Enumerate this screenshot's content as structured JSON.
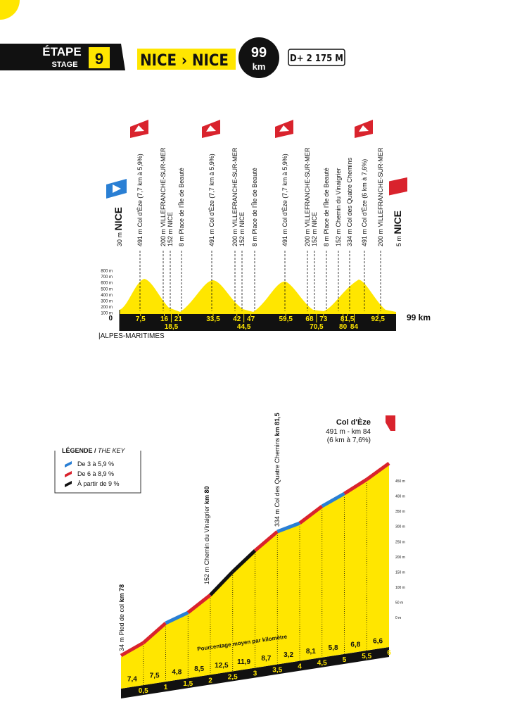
{
  "header": {
    "etape": "ÉTAPE",
    "stage": "STAGE",
    "number": "9",
    "route": "NICE › NICE",
    "distance": "99",
    "distance_unit": "km",
    "climb": "D+ 2 175 M"
  },
  "profile": {
    "start": {
      "alt": "30 m",
      "name": "NICE"
    },
    "finish": {
      "alt": "5 m",
      "name": "NICE"
    },
    "waypoints": [
      {
        "alt": "491 m",
        "name": "Col d'Èze (7,7 km à 5,9%)"
      },
      {
        "alt": "200 m",
        "name": "VILLEFRANCHE-SUR-MER"
      },
      {
        "alt": "152 m",
        "name": "NICE"
      },
      {
        "alt": "8 m",
        "name": "Place de l'Île de Beauté"
      },
      {
        "alt": "491 m",
        "name": "Col d'Èze (7,7 km à 5,9%)"
      },
      {
        "alt": "200 m",
        "name": "VILLEFRANCHE-SUR-MER"
      },
      {
        "alt": "152 m",
        "name": "NICE"
      },
      {
        "alt": "8 m",
        "name": "Place de l'Île de Beauté"
      },
      {
        "alt": "491 m",
        "name": "Col d'Èze (7,7 km à 5,9%)"
      },
      {
        "alt": "200 m",
        "name": "VILLEFRANCHE-SUR-MER"
      },
      {
        "alt": "152 m",
        "name": "NICE"
      },
      {
        "alt": "8 m",
        "name": "Place de l'Île de Beauté"
      },
      {
        "alt": "152 m",
        "name": "Chemin du Vinaigrier"
      },
      {
        "alt": "334 m",
        "name": "Col des Quatre Chemins"
      },
      {
        "alt": "491 m",
        "name": "Col d'Èze (6 km à 7,6%)"
      },
      {
        "alt": "200 m",
        "name": "VILLEFRANCHE-SUR-MER"
      }
    ],
    "yticks": [
      {
        "value": 800,
        "label": "800 m"
      },
      {
        "value": 700,
        "label": "700 m"
      },
      {
        "value": 600,
        "label": "600 m"
      },
      {
        "value": 500,
        "label": "500 m"
      },
      {
        "value": 400,
        "label": "400 m"
      },
      {
        "value": 300,
        "label": "300 m"
      },
      {
        "value": 200,
        "label": "200 m"
      },
      {
        "value": 100,
        "label": "100 m"
      },
      0
    ],
    "km_markers": [
      {
        "value": 7.5,
        "label": "7,5"
      },
      16,
      21,
      {
        "value": 33.5,
        "label": "33,5"
      },
      42,
      47,
      {
        "value": 59.5,
        "label": "59,5"
      },
      68,
      73,
      {
        "value": 81.5,
        "label": "81,5"
      },
      {
        "value": 92.5,
        "label": "92,5"
      }
    ],
    "km_markers_lower": [
      {
        "value": 18.5,
        "label": "18,5"
      },
      {
        "value": 44.5,
        "label": "44,5"
      },
      {
        "value": 70.5,
        "label": "70,5"
      },
      80,
      84
    ],
    "end_km": "99 km",
    "region": "|ALPES-MARITIMES"
  },
  "climb": {
    "name": "Col d'Èze",
    "alt_km": "491 m - km 84",
    "detail": "(6 km à 7,6%)",
    "legend": {
      "title": "LÉGENDE / ",
      "title_en": "THE KEY",
      "items": [
        "De 3 à 5,9 %",
        "De 6 à 8,9 %",
        "À partir de 9 %"
      ]
    },
    "points": [
      {
        "alt": "34 m",
        "name": "Pied de col",
        "km": "km 78"
      },
      {
        "alt": "152 m",
        "name": "Chemin du Vinaigrier",
        "km": "km 80"
      },
      {
        "alt": "334 m",
        "name": "Col des Quatre Chemins",
        "km": "km 81,5"
      }
    ],
    "yticks": [
      {
        "value": 450,
        "label": "450 m"
      },
      {
        "value": 400,
        "label": "400 m"
      },
      {
        "value": 350,
        "label": "350 m"
      },
      {
        "value": 300,
        "label": "300 m"
      },
      {
        "value": 250,
        "label": "250 m"
      },
      {
        "value": 200,
        "label": "200 m"
      },
      {
        "value": 150,
        "label": "150 m"
      },
      {
        "value": 100,
        "label": "100 m"
      },
      {
        "value": 50,
        "label": "50 m"
      },
      {
        "value": 0,
        "label": "0 m"
      }
    ],
    "gradient_title": "Pourcentage moyen par kilomètre",
    "gradients": [
      {
        "value": 7.4,
        "label": "7,4"
      },
      {
        "value": 7.5,
        "label": "7,5"
      },
      {
        "value": 4.8,
        "label": "4,8"
      },
      {
        "value": 8.5,
        "label": "8,5"
      },
      {
        "value": 12.5,
        "label": "12,5"
      },
      {
        "value": 11.9,
        "label": "11,9"
      },
      {
        "value": 8.7,
        "label": "8,7"
      },
      {
        "value": 3.2,
        "label": "3,2"
      },
      {
        "value": 8.1,
        "label": "8,1"
      },
      {
        "value": 5.8,
        "label": "5,8"
      },
      {
        "value": 6.8,
        "label": "6,8"
      },
      {
        "value": 6.6,
        "label": "6,6"
      }
    ],
    "km": [
      {
        "value": 0.5,
        "label": "0,5"
      },
      1,
      {
        "value": 1.5,
        "label": "1,5"
      },
      2,
      {
        "value": 2.5,
        "label": "2,5"
      },
      3,
      {
        "value": 3.5,
        "label": "3,5"
      },
      4,
      {
        "value": 4.5,
        "label": "4,5"
      },
      5,
      {
        "value": 5.5,
        "label": "5,5"
      },
      6
    ]
  }
}
